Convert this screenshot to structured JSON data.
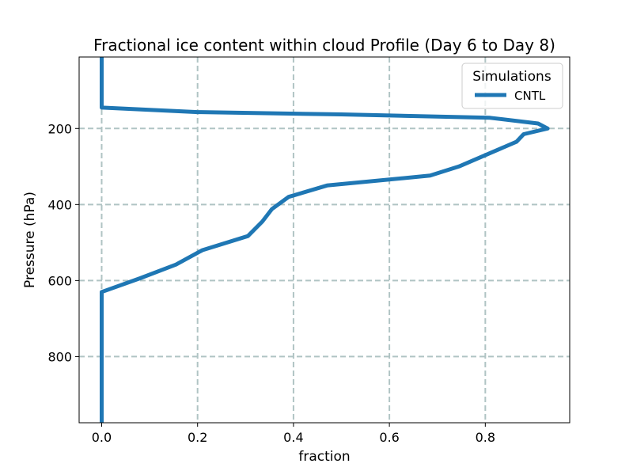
{
  "chart_data": {
    "type": "line",
    "title": "Fractional ice content within cloud Profile (Day 6 to Day 8)",
    "xlabel": "fraction",
    "ylabel": "Pressure (hPa)",
    "xlim": [
      -0.047,
      0.976
    ],
    "ylim": [
      974,
      12
    ],
    "y_inverted": true,
    "xticks": [
      0.0,
      0.2,
      0.4,
      0.6,
      0.8
    ],
    "xtick_labels": [
      "0.0",
      "0.2",
      "0.4",
      "0.6",
      "0.8"
    ],
    "yticks": [
      200,
      400,
      600,
      800
    ],
    "ytick_labels": [
      "200",
      "400",
      "600",
      "800"
    ],
    "grid": true,
    "grid_style": "dashed",
    "legend": {
      "title": "Simulations",
      "placement": "upper right"
    },
    "series": [
      {
        "name": "CNTL",
        "color": "#1f77b4",
        "x": [
          0.0,
          0.0,
          0.0,
          0.2,
          0.5,
          0.81,
          0.91,
          0.93,
          0.88,
          0.865,
          0.745,
          0.685,
          0.47,
          0.39,
          0.355,
          0.335,
          0.305,
          0.21,
          0.155,
          0.08,
          0.0,
          0.0
        ],
        "y": [
          12,
          100,
          145,
          157,
          163,
          172,
          187,
          200,
          215,
          235,
          300,
          324,
          350,
          380,
          412,
          445,
          483,
          520,
          558,
          594,
          630,
          974
        ]
      }
    ]
  }
}
